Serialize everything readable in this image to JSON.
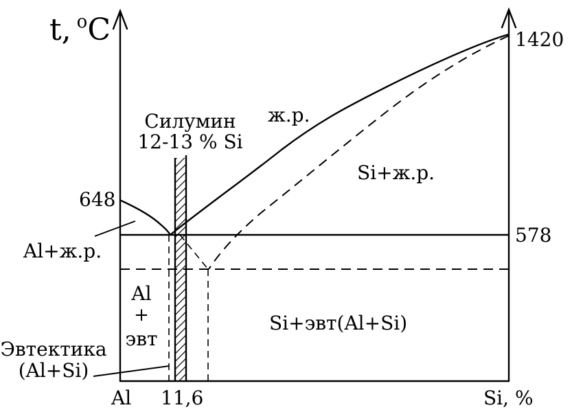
{
  "diagram": {
    "y_axis_label": "t, °C",
    "y_axis_label_main": "t,",
    "y_axis_label_sup": "o",
    "y_axis_label_unit": "C",
    "x_axis_label": "Si, %",
    "left_component": "Al",
    "eutectic_composition": "11,6",
    "temperatures": {
      "al_melting": "648",
      "si_melting": "1420",
      "eutectic": "578"
    },
    "regions": {
      "liquid": "ж.р.",
      "si_liquid": "Si+ж.р.",
      "al_liquid": "Al+ж.р.",
      "al_eutectic_line1": "Al",
      "al_eutectic_line2": "+",
      "al_eutectic_line3": "эвт",
      "si_eutectic": "Si+эвт(Al+Si)"
    },
    "silumin": {
      "title": "Силумин",
      "range": "12-13 % Si"
    },
    "eutectic_label": {
      "line1": "Эвтектика",
      "line2": "(Al+Si)"
    }
  }
}
